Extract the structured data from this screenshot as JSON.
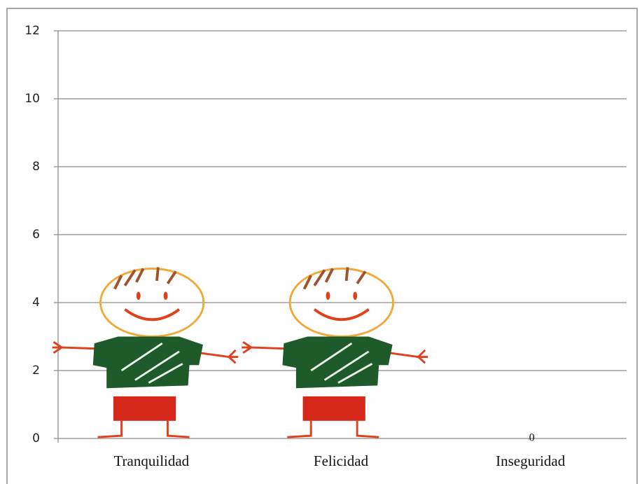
{
  "chart_data": {
    "type": "pictograph",
    "categories": [
      "Tranquilidad",
      "Felicidad",
      "Inseguridad"
    ],
    "values": [
      5,
      5,
      0
    ],
    "ylim": [
      0,
      12
    ],
    "yticks": [
      0,
      2,
      4,
      6,
      8,
      10,
      12
    ],
    "grid": true
  }
}
